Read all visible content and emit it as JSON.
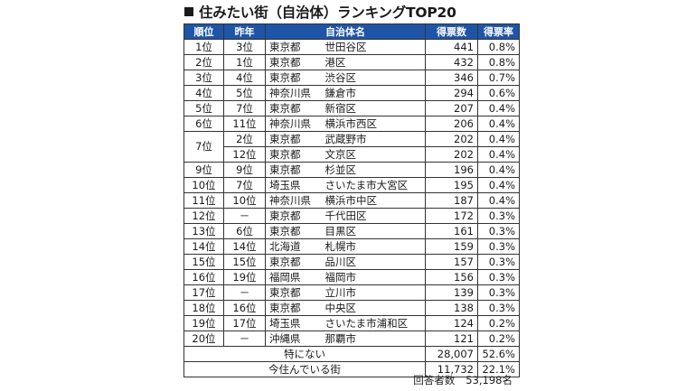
{
  "title": "住みたい街（自治体）ランキングTOP20",
  "headers": {
    "rank": "順位",
    "last_year": "昨年",
    "municipality": "自治体名",
    "votes": "得票数",
    "rate": "得票率"
  },
  "rows": [
    {
      "rank": "1位",
      "last": "3位",
      "pref": "東京都",
      "city": "世田谷区",
      "votes": "441",
      "rate": "0.8%"
    },
    {
      "rank": "2位",
      "last": "1位",
      "pref": "東京都",
      "city": "港区",
      "votes": "432",
      "rate": "0.8%"
    },
    {
      "rank": "3位",
      "last": "4位",
      "pref": "東京都",
      "city": "渋谷区",
      "votes": "346",
      "rate": "0.7%"
    },
    {
      "rank": "4位",
      "last": "5位",
      "pref": "神奈川県",
      "city": "鎌倉市",
      "votes": "294",
      "rate": "0.6%"
    },
    {
      "rank": "5位",
      "last": "7位",
      "pref": "東京都",
      "city": "新宿区",
      "votes": "207",
      "rate": "0.4%"
    },
    {
      "rank": "6位",
      "last": "11位",
      "pref": "神奈川県",
      "city": "横浜市西区",
      "votes": "206",
      "rate": "0.4%"
    },
    {
      "rank": "7位",
      "last": "2位",
      "pref": "東京都",
      "city": "武蔵野市",
      "votes": "202",
      "rate": "0.4%"
    },
    {
      "rank": "",
      "last": "12位",
      "pref": "東京都",
      "city": "文京区",
      "votes": "202",
      "rate": "0.4%"
    },
    {
      "rank": "9位",
      "last": "9位",
      "pref": "東京都",
      "city": "杉並区",
      "votes": "196",
      "rate": "0.4%"
    },
    {
      "rank": "10位",
      "last": "7位",
      "pref": "埼玉県",
      "city": "さいたま市大宮区",
      "votes": "195",
      "rate": "0.4%"
    },
    {
      "rank": "11位",
      "last": "10位",
      "pref": "神奈川県",
      "city": "横浜市中区",
      "votes": "187",
      "rate": "0.4%"
    },
    {
      "rank": "12位",
      "last": "－",
      "pref": "東京都",
      "city": "千代田区",
      "votes": "172",
      "rate": "0.3%"
    },
    {
      "rank": "13位",
      "last": "6位",
      "pref": "東京都",
      "city": "目黒区",
      "votes": "161",
      "rate": "0.3%"
    },
    {
      "rank": "14位",
      "last": "14位",
      "pref": "北海道",
      "city": "札幌市",
      "votes": "159",
      "rate": "0.3%"
    },
    {
      "rank": "15位",
      "last": "15位",
      "pref": "東京都",
      "city": "品川区",
      "votes": "157",
      "rate": "0.3%"
    },
    {
      "rank": "16位",
      "last": "19位",
      "pref": "福岡県",
      "city": "福岡市",
      "votes": "156",
      "rate": "0.3%"
    },
    {
      "rank": "17位",
      "last": "－",
      "pref": "東京都",
      "city": "立川市",
      "votes": "139",
      "rate": "0.3%"
    },
    {
      "rank": "18位",
      "last": "16位",
      "pref": "東京都",
      "city": "中央区",
      "votes": "138",
      "rate": "0.3%"
    },
    {
      "rank": "19位",
      "last": "17位",
      "pref": "埼玉県",
      "city": "さいたま市浦和区",
      "votes": "124",
      "rate": "0.2%"
    },
    {
      "rank": "20位",
      "last": "－",
      "pref": "沖縄県",
      "city": "那覇市",
      "votes": "121",
      "rate": "0.2%"
    }
  ],
  "totals": [
    {
      "label": "特にない",
      "votes": "28,007",
      "rate": "52.6%"
    },
    {
      "label": "今住んでいる街",
      "votes": "11,732",
      "rate": "22.1%"
    }
  ],
  "respondents": {
    "label": "回答者数",
    "value": "53,198名"
  }
}
